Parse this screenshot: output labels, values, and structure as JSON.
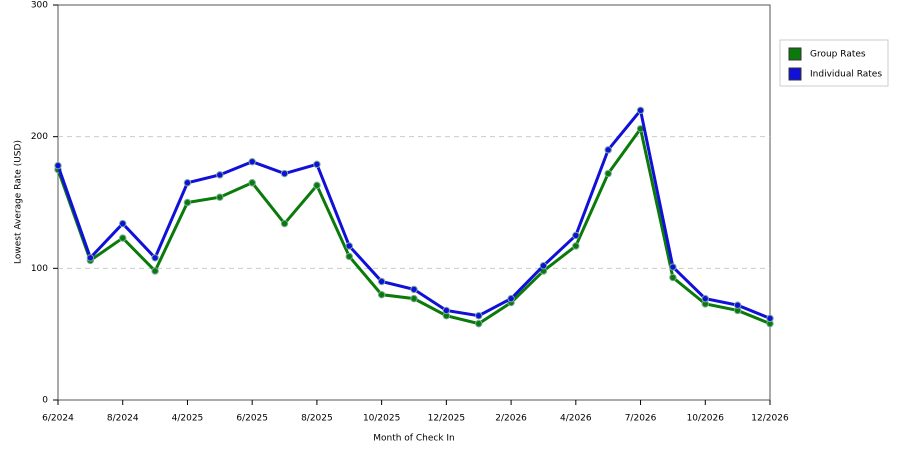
{
  "chart_data": {
    "type": "line",
    "x_label": "Month of Check In",
    "y_label": "Lowest Average Rate (USD)",
    "categories": [
      "6/2024",
      null,
      "8/2024",
      null,
      "4/2025",
      null,
      "6/2025",
      null,
      "8/2025",
      null,
      "10/2025",
      null,
      "12/2025",
      null,
      "2/2026",
      null,
      "4/2026",
      null,
      "7/2026",
      null,
      "10/2026",
      null,
      "12/2026"
    ],
    "series": [
      {
        "name": "Group Rates",
        "color": "#0a7a0a",
        "values": [
          175,
          106,
          123,
          98,
          150,
          154,
          165,
          134,
          163,
          109,
          80,
          77,
          64,
          58,
          74,
          98,
          117,
          172,
          206,
          93,
          73,
          68,
          58
        ]
      },
      {
        "name": "Individual Rates",
        "color": "#1010d8",
        "values": [
          178,
          108,
          134,
          108,
          165,
          171,
          181,
          172,
          179,
          117,
          90,
          84,
          68,
          64,
          77,
          102,
          125,
          190,
          220,
          101,
          77,
          72,
          62
        ]
      }
    ],
    "ylim": [
      0,
      300
    ],
    "yticks": [
      0,
      100,
      200,
      300
    ],
    "grid": true
  }
}
